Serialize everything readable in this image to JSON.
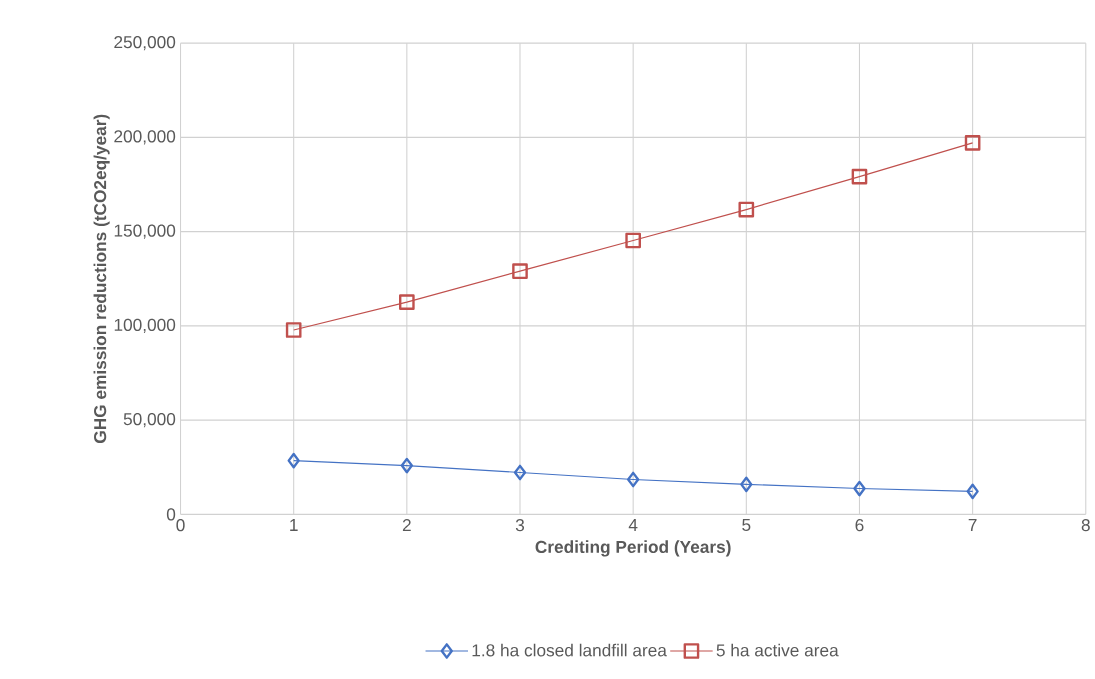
{
  "chart_data": {
    "type": "line",
    "xlabel": "Crediting Period (Years)",
    "ylabel": "GHG emission reductions (tCO2eq/year)",
    "x": [
      1,
      2,
      3,
      4,
      5,
      6,
      7
    ],
    "series": [
      {
        "name": "1.8 ha closed landfill  area",
        "color": "#4472c4",
        "marker": "diamond",
        "values": [
          28500,
          25900,
          22200,
          18500,
          15900,
          13700,
          12200
        ]
      },
      {
        "name": "5 ha active area",
        "color": "#c0504d",
        "marker": "square",
        "values": [
          97800,
          112600,
          129000,
          145300,
          161700,
          179200,
          197100
        ]
      }
    ],
    "xlim": [
      0,
      8
    ],
    "xticks": [
      0,
      1,
      2,
      3,
      4,
      5,
      6,
      7,
      8
    ],
    "ylim": [
      0,
      250000
    ],
    "yticks": [
      {
        "value": 0,
        "label": "0"
      },
      {
        "value": 50000,
        "label": "50,000"
      },
      {
        "value": 100000,
        "label": "100,000"
      },
      {
        "value": 150000,
        "label": "150,000"
      },
      {
        "value": 200000,
        "label": "200,000"
      },
      {
        "value": 250000,
        "label": "250,000"
      }
    ],
    "grid": true,
    "legend": "bottom",
    "line_style": "solid"
  }
}
